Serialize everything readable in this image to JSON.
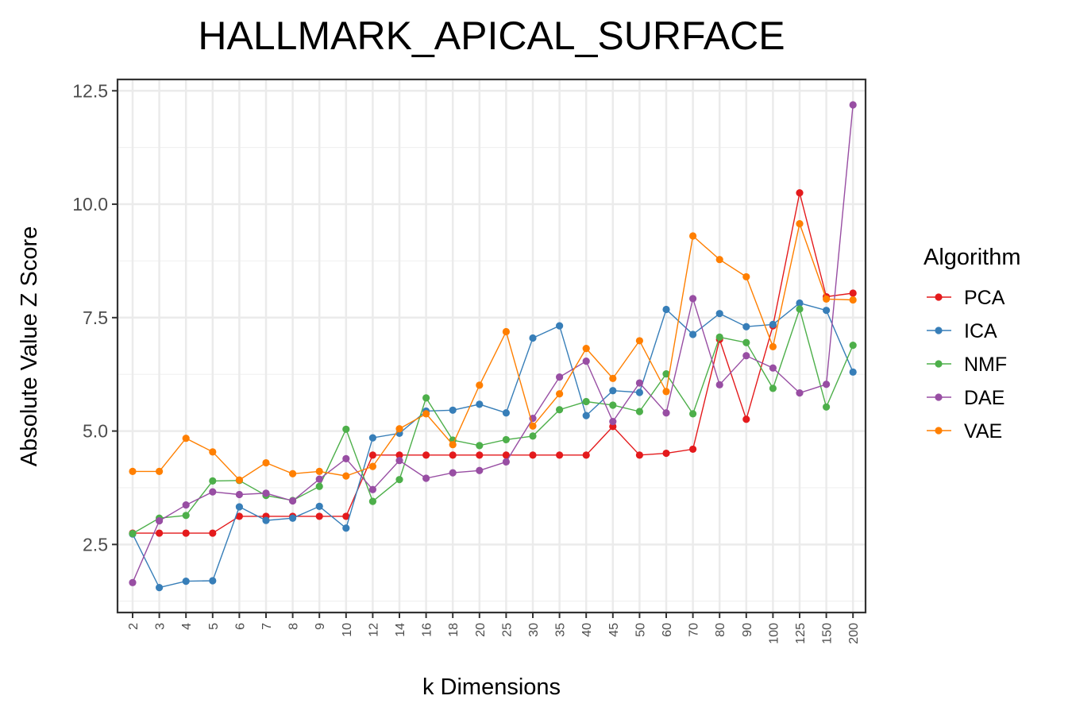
{
  "chart_data": {
    "type": "line",
    "title": "HALLMARK_APICAL_SURFACE",
    "xlabel": "k Dimensions",
    "ylabel": "Absolute Value Z Score",
    "categories": [
      "2",
      "3",
      "4",
      "5",
      "6",
      "7",
      "8",
      "9",
      "10",
      "12",
      "14",
      "16",
      "18",
      "20",
      "25",
      "30",
      "35",
      "40",
      "45",
      "50",
      "60",
      "70",
      "80",
      "90",
      "100",
      "125",
      "150",
      "200"
    ],
    "ylim": [
      1.0,
      12.75
    ],
    "yticks": [
      2.5,
      5.0,
      7.5,
      10.0,
      12.5
    ],
    "ytick_labels": [
      "2.5",
      "5.0",
      "7.5",
      "10.0",
      "12.5"
    ],
    "grid": true,
    "legend": {
      "title": "Algorithm",
      "position": "right"
    },
    "series": [
      {
        "name": "PCA",
        "color": "#e41a1c",
        "values": [
          2.75,
          2.75,
          2.75,
          2.75,
          3.12,
          3.12,
          3.12,
          3.12,
          3.12,
          4.47,
          4.47,
          4.47,
          4.47,
          4.47,
          4.47,
          4.47,
          4.47,
          4.47,
          5.1,
          4.47,
          4.51,
          4.6,
          7.02,
          5.26,
          7.32,
          10.25,
          7.96,
          8.04
        ]
      },
      {
        "name": "ICA",
        "color": "#377eb8",
        "values": [
          2.73,
          1.55,
          1.69,
          1.7,
          3.33,
          3.03,
          3.08,
          3.34,
          2.86,
          4.85,
          4.95,
          5.44,
          5.46,
          5.59,
          5.4,
          7.05,
          7.32,
          5.34,
          5.89,
          5.85,
          7.68,
          7.13,
          7.59,
          7.3,
          7.35,
          7.82,
          7.66,
          6.3
        ]
      },
      {
        "name": "NMF",
        "color": "#4daf4a",
        "values": [
          2.74,
          3.08,
          3.14,
          3.9,
          3.91,
          3.58,
          3.47,
          3.78,
          5.04,
          3.45,
          3.93,
          5.73,
          4.8,
          4.68,
          4.81,
          4.89,
          5.47,
          5.65,
          5.57,
          5.43,
          6.26,
          5.38,
          7.07,
          6.95,
          5.94,
          7.69,
          5.53,
          6.89
        ]
      },
      {
        "name": "DAE",
        "color": "#984ea3",
        "values": [
          1.66,
          3.02,
          3.37,
          3.66,
          3.6,
          3.63,
          3.46,
          3.94,
          4.39,
          3.71,
          4.35,
          3.96,
          4.08,
          4.13,
          4.32,
          5.28,
          6.19,
          6.54,
          5.21,
          6.06,
          5.4,
          7.92,
          6.02,
          6.66,
          6.39,
          5.84,
          6.03,
          12.19
        ]
      },
      {
        "name": "VAE",
        "color": "#ff7f00",
        "values": [
          4.11,
          4.11,
          4.84,
          4.54,
          3.92,
          4.3,
          4.06,
          4.11,
          4.01,
          4.22,
          5.05,
          5.38,
          4.7,
          6.01,
          7.19,
          5.11,
          5.82,
          6.82,
          6.16,
          6.99,
          5.87,
          9.3,
          8.78,
          8.4,
          6.86,
          9.57,
          7.91,
          7.89
        ]
      }
    ]
  }
}
